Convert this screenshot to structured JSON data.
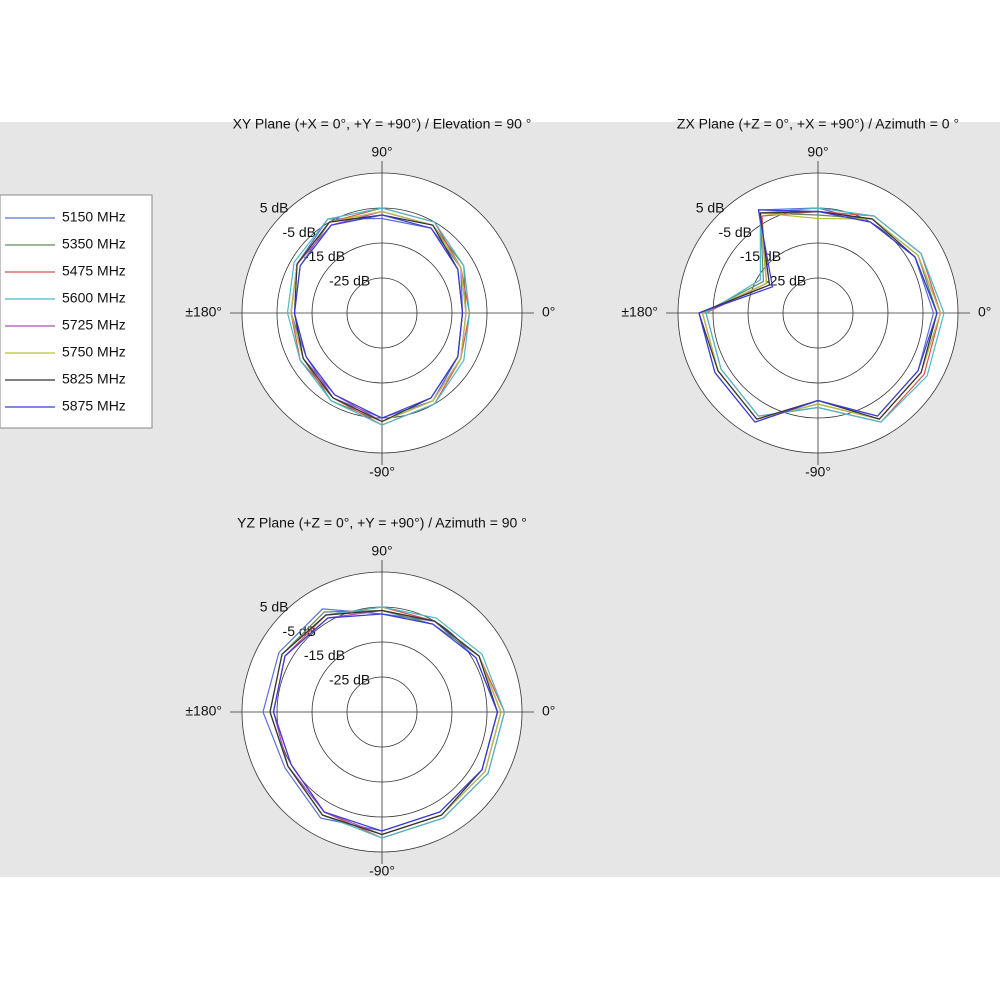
{
  "legend": {
    "names": [
      "5150 MHz",
      "5350 MHz",
      "5475 MHz",
      "5600 MHz",
      "5725 MHz",
      "5750 MHz",
      "5825 MHz",
      "5875 MHz"
    ],
    "colors": [
      "#5a6fd6",
      "#5f8a5f",
      "#d9534f",
      "#4bb8c8",
      "#b04fc0",
      "#b8c040",
      "#333333",
      "#3a3ad8"
    ]
  },
  "chart_data": [
    {
      "type": "polar",
      "title": "XY Plane (+X = 0°, +Y = +90°) / Elevation = 90 °",
      "theta": [
        0,
        30,
        60,
        90,
        120,
        150,
        180,
        210,
        240,
        270,
        300,
        330
      ],
      "rlim": [
        -35,
        5
      ],
      "rticks": [
        {
          "value": -25,
          "label": "-25 dB"
        },
        {
          "value": -15,
          "label": "-15 dB"
        },
        {
          "value": -5,
          "label": "-5 dB"
        },
        {
          "value": 5,
          "label": "5 dB"
        }
      ],
      "thetaticks": [
        {
          "value": 0,
          "label": "0°"
        },
        {
          "value": 90,
          "label": "90°"
        },
        {
          "value": 180,
          "label": "±180°"
        },
        {
          "value": -90,
          "label": "-90°"
        }
      ],
      "series": [
        {
          "values": [
            -12,
            -9,
            -7,
            -8,
            -4,
            -7,
            -9,
            -10,
            -7,
            -5,
            -6,
            -10
          ]
        },
        {
          "values": [
            -11,
            -8,
            -6,
            -6,
            -5,
            -8,
            -10,
            -9,
            -6,
            -4,
            -6,
            -9
          ]
        },
        {
          "values": [
            -10,
            -9,
            -5,
            -5,
            -5,
            -7,
            -9,
            -8,
            -7,
            -3,
            -5,
            -9
          ]
        },
        {
          "values": [
            -10,
            -8,
            -5,
            -5,
            -4,
            -6,
            -8,
            -8,
            -6,
            -3,
            -5,
            -8
          ]
        },
        {
          "values": [
            -11,
            -9,
            -6,
            -6,
            -6,
            -7,
            -9,
            -9,
            -8,
            -4,
            -6,
            -9
          ]
        },
        {
          "values": [
            -11,
            -9,
            -6,
            -6,
            -5,
            -7,
            -9,
            -9,
            -7,
            -4,
            -6,
            -9
          ]
        },
        {
          "values": [
            -12,
            -10,
            -6,
            -7,
            -5,
            -7,
            -10,
            -9,
            -7,
            -4,
            -7,
            -10
          ]
        },
        {
          "values": [
            -12,
            -10,
            -7,
            -7,
            -6,
            -8,
            -10,
            -10,
            -8,
            -5,
            -7,
            -10
          ]
        }
      ]
    },
    {
      "type": "polar",
      "title": "ZX Plane (+Z = 0°, +X = +90°) / Azimuth = 0 °",
      "theta": [
        0,
        30,
        60,
        90,
        120,
        150,
        180,
        210,
        240,
        270,
        300,
        330
      ],
      "rlim": [
        -35,
        5
      ],
      "rticks": [
        {
          "value": -25,
          "label": "-25 dB"
        },
        {
          "value": -15,
          "label": "-15 dB"
        },
        {
          "value": -5,
          "label": "-5 dB"
        },
        {
          "value": 5,
          "label": "5 dB"
        }
      ],
      "thetaticks": [
        {
          "value": 0,
          "label": "0°"
        },
        {
          "value": 90,
          "label": "90°"
        },
        {
          "value": 180,
          "label": "±180°"
        },
        {
          "value": -90,
          "label": "-90°"
        }
      ],
      "series": [
        {
          "values": [
            -2,
            -3,
            -5,
            -5,
            -1,
            -19,
            -1,
            -1,
            1,
            -10,
            -1,
            -2
          ]
        },
        {
          "values": [
            -1,
            -2,
            -4,
            -7,
            -2,
            -17,
            -2,
            -2,
            0,
            -9,
            0,
            -1
          ]
        },
        {
          "values": [
            0,
            -1,
            -3,
            -6,
            -3,
            -18,
            -3,
            -3,
            -1,
            -8,
            1,
            0
          ]
        },
        {
          "values": [
            1,
            -1,
            -3,
            -5,
            -2,
            -16,
            -3,
            -3,
            -1,
            -8,
            1,
            1
          ]
        },
        {
          "values": [
            0,
            -2,
            -4,
            -6,
            -2,
            -18,
            -2,
            -2,
            0,
            -9,
            0,
            -1
          ]
        },
        {
          "values": [
            0,
            -2,
            -4,
            -8,
            -2,
            -18,
            -2,
            -2,
            0,
            -9,
            0,
            -1
          ]
        },
        {
          "values": [
            -1,
            -3,
            -4,
            -6,
            -2,
            -19,
            -1,
            -2,
            0,
            -10,
            0,
            -1
          ]
        },
        {
          "values": [
            -1,
            -3,
            -5,
            -6,
            -1,
            -20,
            -1,
            -1,
            1,
            -10,
            -1,
            -2
          ]
        }
      ]
    },
    {
      "type": "polar",
      "title": "YZ Plane (+Z = 0°, +Y = +90°) / Azimuth = 90 °",
      "theta": [
        0,
        30,
        60,
        90,
        120,
        150,
        180,
        210,
        240,
        270,
        300,
        330
      ],
      "rlim": [
        -35,
        5
      ],
      "rticks": [
        {
          "value": -25,
          "label": "-25 dB"
        },
        {
          "value": -15,
          "label": "-15 dB"
        },
        {
          "value": -5,
          "label": "-5 dB"
        },
        {
          "value": 5,
          "label": "5 dB"
        }
      ],
      "thetaticks": [
        {
          "value": 0,
          "label": "0°"
        },
        {
          "value": 90,
          "label": "90°"
        },
        {
          "value": 180,
          "label": "±180°"
        },
        {
          "value": -90,
          "label": "-90°"
        }
      ],
      "series": [
        {
          "values": [
            -2,
            -4,
            -5,
            -7,
            -1,
            -1,
            -1,
            -3,
            0,
            -1,
            -2,
            -2
          ]
        },
        {
          "values": [
            -1,
            -3,
            -6,
            -6,
            -2,
            -2,
            -3,
            -4,
            -1,
            0,
            -1,
            -1
          ]
        },
        {
          "values": [
            0,
            -3,
            -5,
            -5,
            -3,
            -3,
            -4,
            -5,
            -2,
            1,
            0,
            0
          ]
        },
        {
          "values": [
            0,
            -2,
            -4,
            -5,
            -3,
            -2,
            -3,
            -4,
            -1,
            1,
            0,
            0
          ]
        },
        {
          "values": [
            -1,
            -3,
            -5,
            -6,
            -4,
            -3,
            -4,
            -4,
            -2,
            0,
            -1,
            -1
          ]
        },
        {
          "values": [
            -1,
            -3,
            -5,
            -6,
            -3,
            -2,
            -3,
            -4,
            -1,
            0,
            -1,
            -1
          ]
        },
        {
          "values": [
            -2,
            -3,
            -5,
            -6,
            -3,
            -2,
            -3,
            -4,
            -1,
            0,
            -1,
            -2
          ]
        },
        {
          "values": [
            -2,
            -4,
            -6,
            -7,
            -4,
            -3,
            -4,
            -5,
            -2,
            -1,
            -2,
            -2
          ]
        }
      ]
    }
  ]
}
